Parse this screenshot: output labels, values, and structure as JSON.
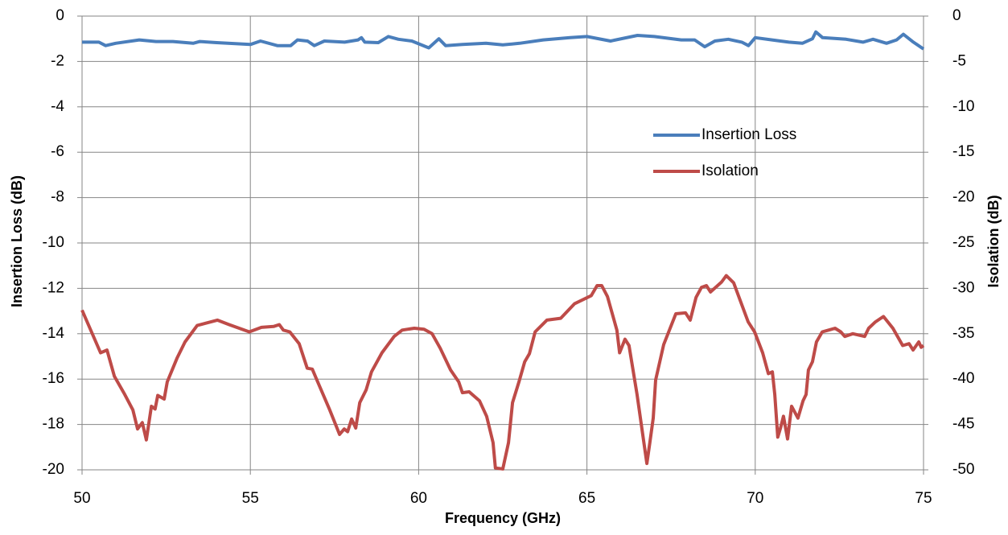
{
  "chart_data": {
    "type": "line",
    "xlabel": "Frequency (GHz)",
    "ylabel": "Insertion Loss (dB)",
    "y2label": "Isolation (dB)",
    "xlim": [
      50,
      75
    ],
    "xticks": [
      50,
      55,
      60,
      65,
      70,
      75
    ],
    "ylim": [
      -20,
      0
    ],
    "yticks": [
      0,
      -2,
      -4,
      -6,
      -8,
      -10,
      -12,
      -14,
      -16,
      -18,
      -20
    ],
    "y2lim": [
      -50,
      0
    ],
    "y2ticks": [
      0,
      -5,
      -10,
      -15,
      -20,
      -25,
      -30,
      -35,
      -40,
      -45,
      -50
    ],
    "grid": true,
    "legend": "upper right",
    "series": [
      {
        "name": "Insertion Loss",
        "color": "#4a7ebb",
        "x": [
          50,
          50.5,
          50.7,
          51,
          51.7,
          52.2,
          52.7,
          53.3,
          53.5,
          54,
          55,
          55.3,
          55.8,
          56.2,
          56.4,
          56.7,
          56.9,
          57.2,
          57.8,
          58.2,
          58.3,
          58.4,
          58.8,
          59.1,
          59.4,
          59.8,
          60.3,
          60.6,
          60.8,
          61.3,
          62,
          62.5,
          63,
          63.7,
          64.5,
          65,
          65.7,
          66.5,
          67,
          67.8,
          68.2,
          68.5,
          68.8,
          69.2,
          69.6,
          69.8,
          70,
          70.5,
          71,
          71.4,
          71.7,
          71.8,
          72,
          72.7,
          73.2,
          73.5,
          73.9,
          74.2,
          74.4,
          74.7,
          75
        ],
        "values": [
          -1.15,
          -1.15,
          -1.3,
          -1.2,
          -1.05,
          -1.12,
          -1.12,
          -1.2,
          -1.12,
          -1.17,
          -1.25,
          -1.1,
          -1.3,
          -1.3,
          -1.05,
          -1.1,
          -1.3,
          -1.1,
          -1.15,
          -1.05,
          -0.95,
          -1.15,
          -1.17,
          -0.9,
          -1.02,
          -1.1,
          -1.4,
          -1.0,
          -1.3,
          -1.25,
          -1.2,
          -1.27,
          -1.2,
          -1.05,
          -0.95,
          -0.9,
          -1.1,
          -0.85,
          -0.9,
          -1.05,
          -1.05,
          -1.35,
          -1.1,
          -1.02,
          -1.15,
          -1.3,
          -0.95,
          -1.05,
          -1.15,
          -1.2,
          -1.0,
          -0.7,
          -0.95,
          -1.02,
          -1.15,
          -1.02,
          -1.2,
          -1.05,
          -0.8,
          -1.15,
          -1.45
        ]
      },
      {
        "name": "Isolation",
        "color": "#be4b48",
        "axis": "y2",
        "x": [
          50,
          50.55,
          50.74,
          50.96,
          51.27,
          51.51,
          51.65,
          51.79,
          51.91,
          52.06,
          52.17,
          52.25,
          52.44,
          52.53,
          52.82,
          53.06,
          53.42,
          54.02,
          54.37,
          54.97,
          55.33,
          55.69,
          55.86,
          55.98,
          56.17,
          56.45,
          56.69,
          56.84,
          57,
          57.36,
          57.65,
          57.79,
          57.89,
          58.01,
          58.13,
          58.25,
          58.44,
          58.6,
          58.91,
          59.27,
          59.51,
          59.87,
          60.16,
          60.4,
          60.64,
          60.95,
          61.19,
          61.3,
          61.5,
          61.81,
          62.02,
          62.21,
          62.28,
          62.5,
          62.67,
          62.79,
          62.98,
          63.15,
          63.29,
          63.46,
          63.81,
          64.22,
          64.63,
          65.13,
          65.3,
          65.44,
          65.61,
          65.89,
          65.97,
          66.13,
          66.25,
          66.49,
          66.68,
          66.78,
          66.87,
          66.97,
          67.04,
          67.28,
          67.64,
          67.93,
          68.07,
          68.24,
          68.4,
          68.55,
          68.67,
          69,
          69.14,
          69.36,
          69.79,
          69.98,
          70.22,
          70.39,
          70.51,
          70.58,
          70.67,
          70.75,
          70.84,
          70.96,
          71.08,
          71.27,
          71.42,
          71.51,
          71.58,
          71.7,
          71.82,
          71.99,
          72.18,
          72.37,
          72.54,
          72.66,
          72.9,
          73.25,
          73.37,
          73.57,
          73.81,
          74.09,
          74.38,
          74.57,
          74.69,
          74.86,
          74.93,
          75
        ],
        "values": [
          -32.4,
          -37.1,
          -36.8,
          -39.7,
          -41.7,
          -43.4,
          -45.5,
          -44.8,
          -46.7,
          -43.0,
          -43.3,
          -41.8,
          -42.2,
          -40.3,
          -37.7,
          -35.9,
          -34.1,
          -33.5,
          -34.0,
          -34.8,
          -34.3,
          -34.2,
          -34.0,
          -34.6,
          -34.8,
          -36.1,
          -38.8,
          -38.9,
          -40.3,
          -43.4,
          -46.1,
          -45.5,
          -45.8,
          -44.4,
          -45.4,
          -42.6,
          -41.2,
          -39.2,
          -37.1,
          -35.3,
          -34.6,
          -34.4,
          -34.5,
          -35.0,
          -36.6,
          -39.0,
          -40.3,
          -41.5,
          -41.4,
          -42.4,
          -44.1,
          -47.0,
          -49.8,
          -49.9,
          -47.0,
          -42.6,
          -40.3,
          -38.1,
          -37.2,
          -34.8,
          -33.5,
          -33.3,
          -31.7,
          -30.8,
          -29.7,
          -29.7,
          -30.9,
          -34.6,
          -37.1,
          -35.6,
          -36.3,
          -41.7,
          -46.7,
          -49.3,
          -47.0,
          -44.3,
          -40.1,
          -36.2,
          -32.8,
          -32.7,
          -33.5,
          -31.0,
          -29.9,
          -29.7,
          -30.4,
          -29.3,
          -28.6,
          -29.4,
          -33.7,
          -34.8,
          -37.1,
          -39.4,
          -39.2,
          -41.7,
          -46.4,
          -45.4,
          -44.1,
          -46.6,
          -43.0,
          -44.3,
          -42.4,
          -41.7,
          -39.0,
          -38.1,
          -35.9,
          -34.8,
          -34.6,
          -34.4,
          -34.8,
          -35.3,
          -35.0,
          -35.3,
          -34.4,
          -33.7,
          -33.1,
          -34.4,
          -36.3,
          -36.1,
          -36.8,
          -35.9,
          -36.5,
          -36.3
        ]
      }
    ]
  }
}
